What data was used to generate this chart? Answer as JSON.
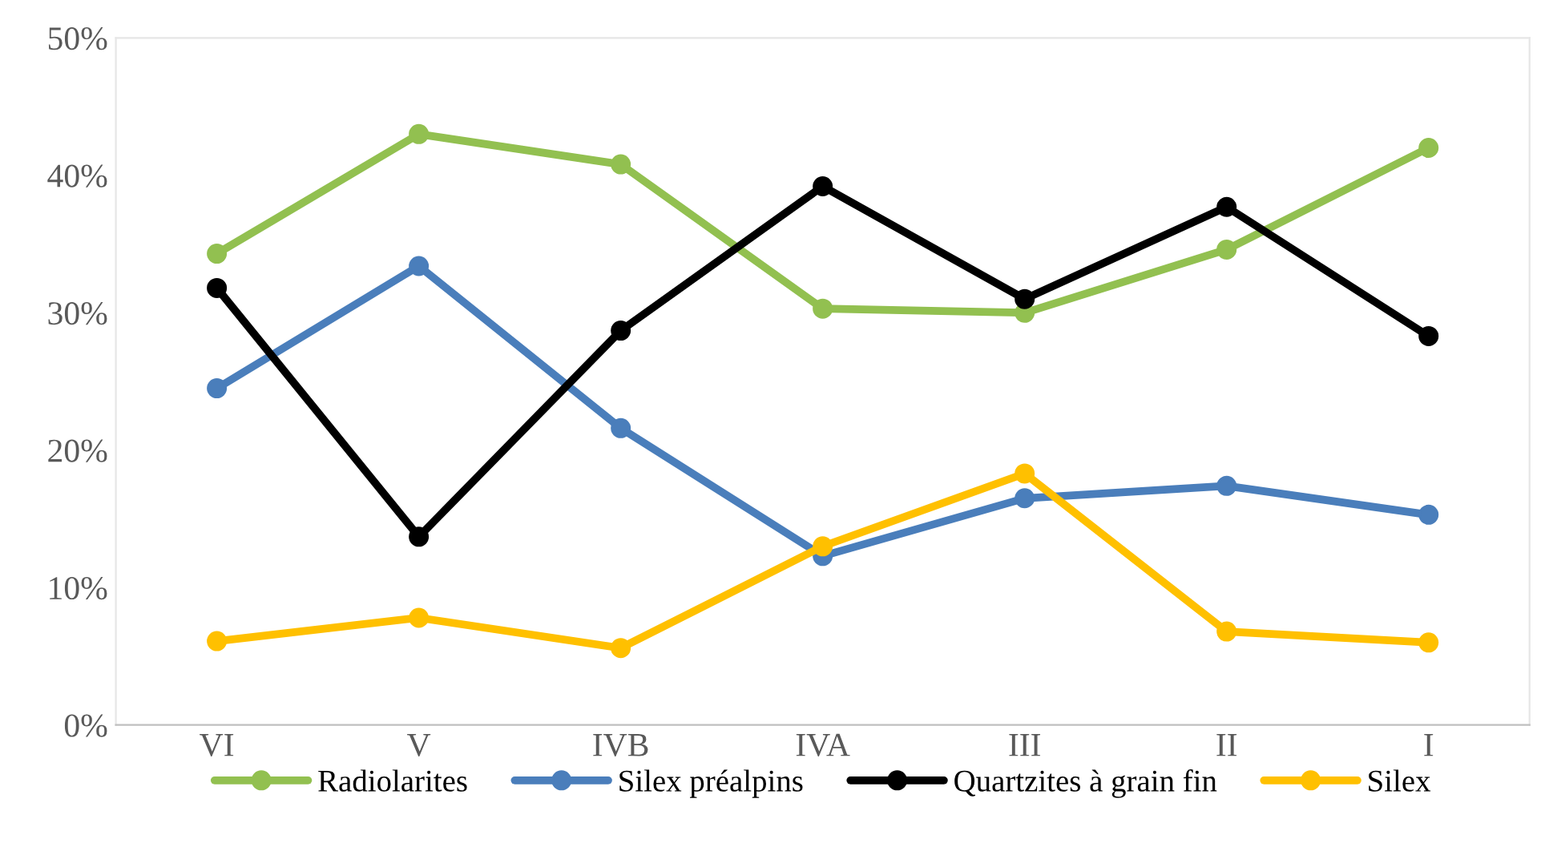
{
  "chart_data": {
    "type": "line",
    "categories": [
      "VI",
      "V",
      "IVB",
      "IVA",
      "III",
      "II",
      "I"
    ],
    "series": [
      {
        "name": "Radiolarites",
        "color": "#92c050",
        "values": [
          34.3,
          43.0,
          40.8,
          30.3,
          30.0,
          34.6,
          42.0
        ]
      },
      {
        "name": "Silex préalpins",
        "color": "#4a7ebb",
        "values": [
          24.5,
          33.4,
          21.6,
          12.3,
          16.5,
          17.4,
          15.3
        ]
      },
      {
        "name": "Quartzites à grain fin",
        "color": "#000000",
        "values": [
          31.8,
          13.7,
          28.7,
          39.2,
          31.0,
          37.7,
          28.3
        ]
      },
      {
        "name": "Silex",
        "color": "#ffc000",
        "values": [
          6.1,
          7.8,
          5.6,
          13.0,
          18.3,
          6.8,
          6.0
        ]
      }
    ],
    "ylim": [
      0,
      50
    ],
    "yticks": [
      {
        "value": 0,
        "label": "0%"
      },
      {
        "value": 10,
        "label": "10%"
      },
      {
        "value": 20,
        "label": "20%"
      },
      {
        "value": 30,
        "label": "30%"
      },
      {
        "value": 40,
        "label": "40%"
      },
      {
        "value": 50,
        "label": "50%"
      }
    ],
    "grid": false,
    "legend": "bottom",
    "marker": "circle",
    "line_style": "solid"
  }
}
